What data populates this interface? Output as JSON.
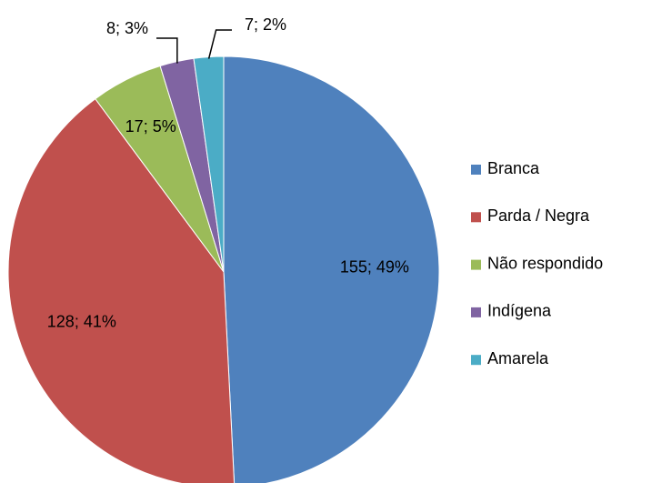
{
  "chart_data": {
    "type": "pie",
    "categories": [
      "Branca",
      "Parda / Negra",
      "Não respondido",
      "Indígena",
      "Amarela"
    ],
    "values": [
      155,
      128,
      17,
      8,
      7
    ],
    "value_labels": [
      "155; 49%",
      "128; 41%",
      "17; 5%",
      "8; 3%",
      "7; 2%"
    ],
    "colors": [
      "#4f81bd",
      "#c0504d",
      "#9bbb59",
      "#8064a2",
      "#4bacc6"
    ],
    "legend": "right"
  }
}
